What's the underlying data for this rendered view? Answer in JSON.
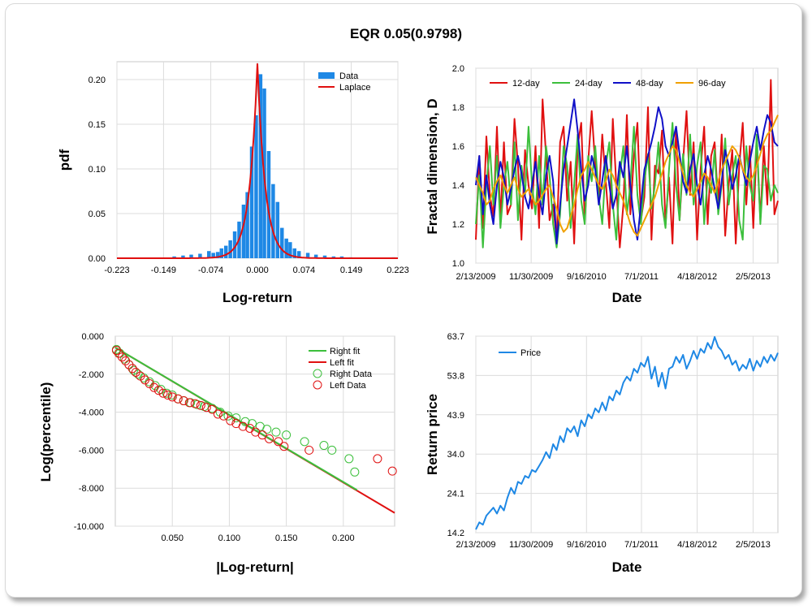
{
  "page": {
    "title": "EQR 0.05(0.9798)"
  },
  "chart_data": [
    {
      "id": "hist",
      "type": "bar",
      "xlabel": "Log-return",
      "ylabel": "pdf",
      "xlim": [
        -0.223,
        0.223
      ],
      "ylim": [
        0,
        0.22
      ],
      "xticks": [
        "-0.223",
        "-0.149",
        "-0.074",
        "0.000",
        "0.074",
        "0.149",
        "0.223"
      ],
      "xtick_values": [
        -0.223,
        -0.149,
        -0.074,
        0.0,
        0.074,
        0.149,
        0.223
      ],
      "yticks": [
        "0.00",
        "0.05",
        "0.10",
        "0.15",
        "0.20"
      ],
      "ytick_values": [
        0,
        0.05,
        0.1,
        0.15,
        0.2
      ],
      "legend": [
        "Data",
        "Laplace"
      ],
      "colors": {
        "bar": "#1e88e5",
        "fit": "#e01010"
      },
      "bin_width": 0.0068,
      "bins_x": [
        -0.212,
        -0.2,
        -0.186,
        -0.17,
        -0.159,
        -0.146,
        -0.132,
        -0.118,
        -0.105,
        -0.091,
        -0.077,
        -0.07,
        -0.063,
        -0.057,
        -0.05,
        -0.043,
        -0.036,
        -0.029,
        -0.022,
        -0.016,
        -0.009,
        -0.002,
        0.005,
        0.011,
        0.018,
        0.025,
        0.032,
        0.039,
        0.046,
        0.052,
        0.059,
        0.066,
        0.08,
        0.093,
        0.107,
        0.121,
        0.134,
        0.148,
        0.162,
        0.175,
        0.189,
        0.203,
        0.216
      ],
      "bins_y": [
        0.0005,
        0.0005,
        0.0005,
        0.0005,
        0.0005,
        0.0007,
        0.002,
        0.003,
        0.004,
        0.005,
        0.008,
        0.006,
        0.007,
        0.011,
        0.014,
        0.02,
        0.03,
        0.041,
        0.06,
        0.074,
        0.125,
        0.16,
        0.206,
        0.19,
        0.12,
        0.083,
        0.063,
        0.034,
        0.022,
        0.018,
        0.011,
        0.008,
        0.006,
        0.004,
        0.003,
        0.002,
        0.002,
        0.001,
        0.0005,
        0.0005,
        0.0005,
        0.0005,
        0.001
      ],
      "fit_peak": 0.218,
      "fit_scale": 0.0125
    },
    {
      "id": "fractal",
      "type": "line",
      "xlabel": "Date",
      "ylabel": "Fractal dimension, D",
      "ylim": [
        1.0,
        2.0
      ],
      "yticks": [
        "1.0",
        "1.2",
        "1.4",
        "1.6",
        "1.8",
        "2.0"
      ],
      "ytick_values": [
        1.0,
        1.2,
        1.4,
        1.6,
        1.8,
        2.0
      ],
      "xticks": [
        "2/13/2009",
        "11/30/2009",
        "9/16/2010",
        "7/1/2011",
        "4/18/2012",
        "2/5/2013"
      ],
      "x_range": [
        "2009-02-13",
        "2013-06-15"
      ],
      "series": [
        {
          "name": "12-day",
          "color": "#e01010",
          "values": [
            1.12,
            1.55,
            1.18,
            1.65,
            1.35,
            1.24,
            1.7,
            1.22,
            1.62,
            1.25,
            1.3,
            1.74,
            1.5,
            1.12,
            1.58,
            1.4,
            1.28,
            1.6,
            1.18,
            1.84,
            1.55,
            1.22,
            1.3,
            1.12,
            1.62,
            1.7,
            1.32,
            1.52,
            1.1,
            1.6,
            1.72,
            1.22,
            1.52,
            1.78,
            1.5,
            1.32,
            1.66,
            1.42,
            1.18,
            1.74,
            1.4,
            1.08,
            1.3,
            1.76,
            1.25,
            1.55,
            1.72,
            1.22,
            1.34,
            1.8,
            1.12,
            1.5,
            1.46,
            1.68,
            1.2,
            1.44,
            1.1,
            1.7,
            1.22,
            1.52,
            1.78,
            1.35,
            1.62,
            1.12,
            1.48,
            1.7,
            1.2,
            1.55,
            1.62,
            1.3,
            1.66,
            1.14,
            1.4,
            1.58,
            1.1,
            1.5,
            1.72,
            1.3,
            1.6,
            1.18,
            1.62,
            1.22,
            1.6,
            1.3,
            1.94,
            1.25,
            1.32
          ]
        },
        {
          "name": "24-day",
          "color": "#3cbf3c",
          "values": [
            1.2,
            1.45,
            1.08,
            1.4,
            1.6,
            1.3,
            1.55,
            1.18,
            1.4,
            1.52,
            1.3,
            1.62,
            1.22,
            1.5,
            1.35,
            1.7,
            1.4,
            1.25,
            1.55,
            1.3,
            1.6,
            1.45,
            1.2,
            1.08,
            1.25,
            1.6,
            1.5,
            1.18,
            1.4,
            1.66,
            1.32,
            1.2,
            1.55,
            1.42,
            1.6,
            1.34,
            1.2,
            1.5,
            1.62,
            1.3,
            1.12,
            1.45,
            1.6,
            1.25,
            1.4,
            1.7,
            1.35,
            1.2,
            1.42,
            1.56,
            1.28,
            1.4,
            1.62,
            1.3,
            1.18,
            1.48,
            1.72,
            1.4,
            1.22,
            1.56,
            1.35,
            1.66,
            1.3,
            1.5,
            1.62,
            1.2,
            1.44,
            1.36,
            1.58,
            1.25,
            1.4,
            1.64,
            1.3,
            1.45,
            1.55,
            1.22,
            1.12,
            1.6,
            1.4,
            1.32,
            1.66,
            1.2,
            1.5,
            1.48,
            1.32,
            1.4,
            1.36
          ]
        },
        {
          "name": "48-day",
          "color": "#1010c8",
          "values": [
            1.4,
            1.55,
            1.25,
            1.45,
            1.3,
            1.2,
            1.4,
            1.52,
            1.44,
            1.3,
            1.38,
            1.48,
            1.55,
            1.46,
            1.34,
            1.28,
            1.4,
            1.52,
            1.35,
            1.25,
            1.45,
            1.55,
            1.42,
            1.1,
            1.3,
            1.48,
            1.6,
            1.72,
            1.84,
            1.68,
            1.48,
            1.32,
            1.4,
            1.55,
            1.48,
            1.3,
            1.42,
            1.55,
            1.4,
            1.28,
            1.35,
            1.52,
            1.44,
            1.6,
            1.4,
            1.22,
            1.12,
            1.3,
            1.48,
            1.55,
            1.62,
            1.7,
            1.8,
            1.74,
            1.6,
            1.55,
            1.62,
            1.7,
            1.56,
            1.42,
            1.36,
            1.48,
            1.56,
            1.4,
            1.3,
            1.45,
            1.55,
            1.48,
            1.38,
            1.28,
            1.42,
            1.58,
            1.5,
            1.38,
            1.45,
            1.55,
            1.48,
            1.4,
            1.52,
            1.62,
            1.7,
            1.58,
            1.68,
            1.76,
            1.72,
            1.62,
            1.6
          ]
        },
        {
          "name": "96-day",
          "color": "#f0a000",
          "values": [
            1.44,
            1.4,
            1.36,
            1.3,
            1.32,
            1.38,
            1.42,
            1.45,
            1.4,
            1.36,
            1.4,
            1.44,
            1.38,
            1.34,
            1.36,
            1.38,
            1.34,
            1.3,
            1.32,
            1.35,
            1.38,
            1.4,
            1.34,
            1.28,
            1.2,
            1.16,
            1.18,
            1.24,
            1.3,
            1.38,
            1.45,
            1.48,
            1.52,
            1.48,
            1.44,
            1.4,
            1.38,
            1.42,
            1.48,
            1.45,
            1.4,
            1.36,
            1.32,
            1.26,
            1.2,
            1.16,
            1.14,
            1.18,
            1.22,
            1.26,
            1.3,
            1.34,
            1.4,
            1.46,
            1.52,
            1.56,
            1.6,
            1.58,
            1.52,
            1.46,
            1.4,
            1.36,
            1.34,
            1.38,
            1.42,
            1.46,
            1.44,
            1.4,
            1.36,
            1.42,
            1.48,
            1.52,
            1.56,
            1.6,
            1.58,
            1.54,
            1.48,
            1.44,
            1.42,
            1.45,
            1.5,
            1.56,
            1.62,
            1.66,
            1.68,
            1.72,
            1.76
          ]
        }
      ]
    },
    {
      "id": "tail",
      "type": "scatter",
      "xlabel": "|Log-return|",
      "ylabel": "Log(percentile)",
      "xlim": [
        0,
        0.245
      ],
      "ylim": [
        -10.0,
        0.0
      ],
      "xticks": [
        "0.050",
        "0.100",
        "0.150",
        "0.200"
      ],
      "xtick_values": [
        0.05,
        0.1,
        0.15,
        0.2
      ],
      "yticks": [
        "0.000",
        "-2.000",
        "-4.000",
        "-6.000",
        "-8.000",
        "-10.000"
      ],
      "ytick_values": [
        0,
        -2,
        -4,
        -6,
        -8,
        -10
      ],
      "legend": [
        "Right fit",
        "Left fit",
        "Right Data",
        "Left Data"
      ],
      "colors": {
        "right": "#3cbf3c",
        "left": "#e01010"
      },
      "right_fit": {
        "x": [
          0.0,
          0.212
        ],
        "y": [
          -0.6,
          -8.1
        ]
      },
      "left_fit": {
        "x": [
          0.0,
          0.245
        ],
        "y": [
          -0.6,
          -9.3
        ]
      },
      "right_data": {
        "x": [
          0.001,
          0.004,
          0.008,
          0.012,
          0.016,
          0.02,
          0.025,
          0.03,
          0.035,
          0.04,
          0.045,
          0.05,
          0.055,
          0.06,
          0.066,
          0.072,
          0.078,
          0.085,
          0.092,
          0.099,
          0.106,
          0.114,
          0.12,
          0.127,
          0.133,
          0.141,
          0.15,
          0.166,
          0.183,
          0.19,
          0.205,
          0.21
        ],
        "y": [
          -0.7,
          -0.9,
          -1.2,
          -1.5,
          -1.8,
          -2.0,
          -2.2,
          -2.4,
          -2.6,
          -2.8,
          -3.0,
          -3.1,
          -3.3,
          -3.4,
          -3.5,
          -3.6,
          -3.7,
          -3.8,
          -4.0,
          -4.2,
          -4.3,
          -4.5,
          -4.6,
          -4.75,
          -4.9,
          -5.05,
          -5.2,
          -5.55,
          -5.75,
          -6.0,
          -6.45,
          -7.15
        ]
      },
      "left_data": {
        "x": [
          0.001,
          0.003,
          0.006,
          0.009,
          0.012,
          0.015,
          0.018,
          0.022,
          0.026,
          0.03,
          0.034,
          0.038,
          0.042,
          0.046,
          0.05,
          0.055,
          0.06,
          0.065,
          0.07,
          0.075,
          0.08,
          0.085,
          0.09,
          0.095,
          0.101,
          0.106,
          0.112,
          0.118,
          0.123,
          0.129,
          0.135,
          0.143,
          0.148,
          0.17,
          0.23,
          0.243
        ],
        "y": [
          -0.75,
          -0.9,
          -1.1,
          -1.3,
          -1.5,
          -1.7,
          -1.9,
          -2.1,
          -2.3,
          -2.5,
          -2.7,
          -2.85,
          -3.0,
          -3.1,
          -3.2,
          -3.3,
          -3.4,
          -3.5,
          -3.55,
          -3.65,
          -3.75,
          -3.85,
          -4.1,
          -4.2,
          -4.45,
          -4.6,
          -4.75,
          -4.85,
          -5.05,
          -5.2,
          -5.4,
          -5.55,
          -5.8,
          -6.0,
          -6.45,
          -7.1
        ]
      }
    },
    {
      "id": "price",
      "type": "line",
      "xlabel": "Date",
      "ylabel": "Return price",
      "ylim": [
        14.2,
        63.7
      ],
      "yticks": [
        "63.7",
        "53.8",
        "43.9",
        "34.0",
        "24.1",
        "14.2"
      ],
      "ytick_values": [
        63.7,
        53.8,
        43.9,
        34.0,
        24.1,
        14.2
      ],
      "xticks": [
        "2/13/2009",
        "11/30/2009",
        "9/16/2010",
        "7/1/2011",
        "4/18/2012",
        "2/5/2013"
      ],
      "x_range": [
        "2009-02-13",
        "2013-06-15"
      ],
      "legend": [
        "Price"
      ],
      "series": [
        {
          "name": "Price",
          "color": "#1e88e5",
          "values": [
            15.0,
            16.8,
            16.2,
            18.5,
            19.5,
            20.5,
            19.0,
            21.0,
            19.8,
            23.0,
            25.5,
            24.0,
            27.0,
            26.5,
            28.5,
            28.0,
            30.0,
            29.5,
            31.0,
            32.5,
            34.5,
            33.0,
            36.5,
            35.0,
            38.5,
            37.0,
            40.5,
            39.5,
            41.0,
            38.5,
            42.5,
            41.0,
            44.0,
            43.0,
            45.5,
            44.5,
            47.0,
            45.0,
            48.5,
            47.5,
            50.0,
            49.0,
            52.0,
            53.5,
            52.5,
            55.5,
            54.5,
            57.0,
            56.0,
            58.5,
            53.0,
            56.0,
            51.0,
            54.5,
            50.5,
            55.5,
            56.0,
            58.5,
            57.0,
            59.0,
            55.5,
            57.5,
            60.0,
            58.0,
            60.5,
            59.5,
            62.0,
            60.5,
            63.5,
            61.0,
            60.0,
            58.0,
            59.0,
            56.5,
            57.5,
            55.0,
            56.5,
            55.5,
            58.0,
            55.0,
            57.5,
            56.0,
            58.5,
            57.0,
            59.0,
            57.5,
            59.5
          ]
        }
      ]
    }
  ]
}
